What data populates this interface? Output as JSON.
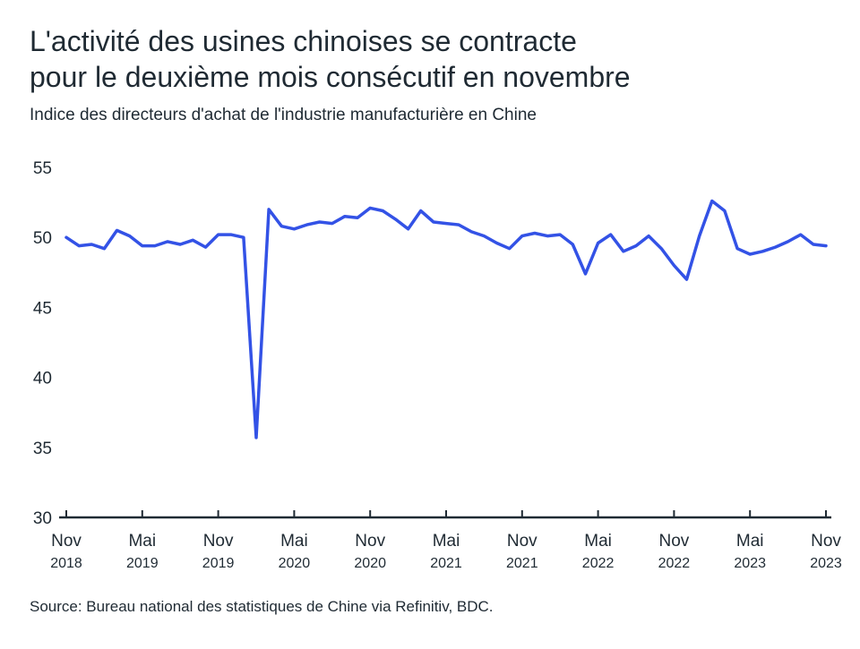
{
  "title_line1": "L'activité des usines chinoises se contracte",
  "title_line2": "pour le deuxième mois consécutif en novembre",
  "subtitle": "Indice des directeurs d'achat de l'industrie manufacturière en Chine",
  "source": "Source: Bureau national des statistiques de Chine via Refinitiv, BDC.",
  "colors": {
    "line": "#3352e6",
    "axis": "#1f2a33",
    "text": "#1f2a33"
  },
  "chart_data": {
    "type": "line",
    "title": "L'activité des usines chinoises se contracte pour le deuxième mois consécutif en novembre",
    "subtitle": "Indice des directeurs d'achat de l'industrie manufacturière en Chine",
    "xlabel": "",
    "ylabel": "",
    "ylim": [
      30,
      55
    ],
    "yticks": [
      30,
      35,
      40,
      45,
      50,
      55
    ],
    "grid": false,
    "legend": "none",
    "x_start": "2018-11",
    "x": [
      "2018-11",
      "2018-12",
      "2019-01",
      "2019-02",
      "2019-03",
      "2019-04",
      "2019-05",
      "2019-06",
      "2019-07",
      "2019-08",
      "2019-09",
      "2019-10",
      "2019-11",
      "2019-12",
      "2020-01",
      "2020-02",
      "2020-03",
      "2020-04",
      "2020-05",
      "2020-06",
      "2020-07",
      "2020-08",
      "2020-09",
      "2020-10",
      "2020-11",
      "2020-12",
      "2021-01",
      "2021-02",
      "2021-03",
      "2021-04",
      "2021-05",
      "2021-06",
      "2021-07",
      "2021-08",
      "2021-09",
      "2021-10",
      "2021-11",
      "2021-12",
      "2022-01",
      "2022-02",
      "2022-03",
      "2022-04",
      "2022-05",
      "2022-06",
      "2022-07",
      "2022-08",
      "2022-09",
      "2022-10",
      "2022-11",
      "2022-12",
      "2023-01",
      "2023-02",
      "2023-03",
      "2023-04",
      "2023-05",
      "2023-06",
      "2023-07",
      "2023-08",
      "2023-09",
      "2023-10",
      "2023-11"
    ],
    "xticks": [
      {
        "month": "Nov",
        "year": "2018",
        "x": "2018-11"
      },
      {
        "month": "Mai",
        "year": "2019",
        "x": "2019-05"
      },
      {
        "month": "Nov",
        "year": "2019",
        "x": "2019-11"
      },
      {
        "month": "Mai",
        "year": "2020",
        "x": "2020-05"
      },
      {
        "month": "Nov",
        "year": "2020",
        "x": "2020-11"
      },
      {
        "month": "Mai",
        "year": "2021",
        "x": "2021-05"
      },
      {
        "month": "Nov",
        "year": "2021",
        "x": "2021-11"
      },
      {
        "month": "Mai",
        "year": "2022",
        "x": "2022-05"
      },
      {
        "month": "Nov",
        "year": "2022",
        "x": "2022-11"
      },
      {
        "month": "Mai",
        "year": "2023",
        "x": "2023-05"
      },
      {
        "month": "Nov",
        "year": "2023",
        "x": "2023-11"
      }
    ],
    "series": [
      {
        "values": [
          50.0,
          49.4,
          49.5,
          49.2,
          50.5,
          50.1,
          49.4,
          49.4,
          49.7,
          49.5,
          49.8,
          49.3,
          50.2,
          50.2,
          50.0,
          35.7,
          52.0,
          50.8,
          50.6,
          50.9,
          51.1,
          51.0,
          51.5,
          51.4,
          52.1,
          51.9,
          51.3,
          50.6,
          51.9,
          51.1,
          51.0,
          50.9,
          50.4,
          50.1,
          49.6,
          49.2,
          50.1,
          50.3,
          50.1,
          50.2,
          49.5,
          47.4,
          49.6,
          50.2,
          49.0,
          49.4,
          50.1,
          49.2,
          48.0,
          47.0,
          50.1,
          52.6,
          51.9,
          49.2,
          48.8,
          49.0,
          49.3,
          49.7,
          50.2,
          49.5,
          49.4
        ]
      }
    ]
  }
}
